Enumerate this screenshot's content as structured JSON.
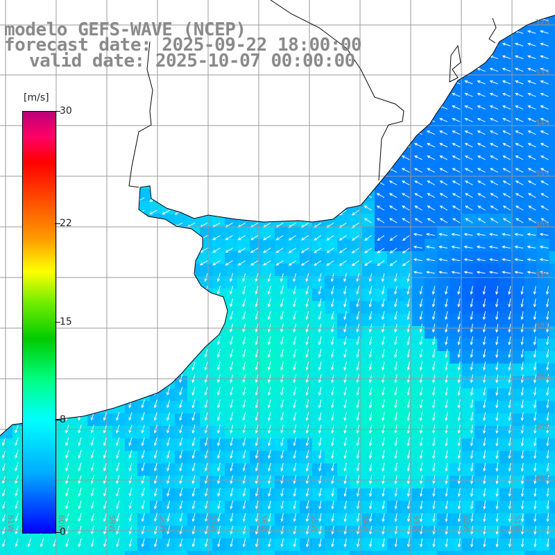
{
  "header": {
    "line1": "modelo GEFS-WAVE (NCEP)",
    "line2": "forecast date: 2025-09-22 18:00:00",
    "line3": "valid date: 2025-10-07 00:00:00"
  },
  "colorbar": {
    "unit": "[m/s]",
    "ticks": [
      "30",
      "22",
      "15",
      "8",
      "0"
    ],
    "tick_values": [
      30,
      22,
      15,
      8,
      0
    ],
    "min": 0,
    "max": 30
  },
  "lat_labels": [
    "32S",
    "33S",
    "34S",
    "35S",
    "36S",
    "37S",
    "38S",
    "39S",
    "40S",
    "41S"
  ],
  "lon_labels": [
    "61W",
    "60W",
    "59W",
    "58W",
    "57W",
    "56W",
    "55W",
    "54W",
    "53W",
    "52W",
    "51W"
  ],
  "colors": {
    "land": "#ffffff",
    "coast": "#000000",
    "grid": "#999999",
    "arrow": "#ffffff",
    "label": "#8a8a8a"
  }
}
